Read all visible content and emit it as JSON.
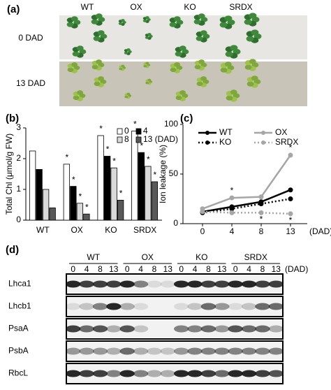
{
  "panel_a": {
    "label": "(a)",
    "columns": [
      "WT",
      "OX",
      "KO",
      "SRDX"
    ],
    "rows": [
      "0 DAD",
      "13 DAD"
    ]
  },
  "chart_data": [
    {
      "type": "bar",
      "panel": "(b)",
      "ylabel": "Total Chl (μmol/g FW)",
      "categories": [
        "WT",
        "OX",
        "KO",
        "SRDX"
      ],
      "ylim": [
        0,
        3
      ],
      "yticks": [
        0,
        1,
        2,
        3
      ],
      "series": [
        {
          "name": "0",
          "color": "#ffffff",
          "values": [
            2.25,
            1.82,
            2.75,
            2.9
          ],
          "significance": [
            null,
            "*",
            "*",
            "*"
          ]
        },
        {
          "name": "4",
          "color": "#000000",
          "values": [
            1.65,
            1.1,
            2.08,
            2.2
          ],
          "significance": [
            null,
            "*",
            "*",
            "*"
          ]
        },
        {
          "name": "8",
          "color": "#d9d9d9",
          "values": [
            1.0,
            0.55,
            1.7,
            1.75
          ],
          "significance": [
            null,
            "*",
            "*",
            "*"
          ]
        },
        {
          "name": "13 (DAD)",
          "color": "#595959",
          "values": [
            0.4,
            0.2,
            0.65,
            1.25
          ],
          "significance": [
            null,
            "*",
            "*",
            "*"
          ]
        }
      ]
    },
    {
      "type": "line",
      "panel": "(c)",
      "ylabel": "Ion leakage (%)",
      "xlabel": "(DAD)",
      "categories": [
        "0",
        "4",
        "8",
        "13"
      ],
      "ylim": [
        0,
        100
      ],
      "yticks": [
        0,
        50,
        100
      ],
      "series": [
        {
          "name": "WT",
          "color": "#000000",
          "style": "solid",
          "values": [
            12,
            17,
            22,
            34
          ],
          "significance": [
            null,
            null,
            null,
            null
          ]
        },
        {
          "name": "OX",
          "color": "#a6a6a6",
          "style": "solid",
          "values": [
            15,
            26,
            27,
            69
          ],
          "significance": [
            null,
            "*",
            null,
            "*"
          ]
        },
        {
          "name": "KO",
          "color": "#000000",
          "style": "dotted",
          "values": [
            11,
            15,
            20,
            25
          ],
          "significance": [
            null,
            null,
            null,
            "*"
          ]
        },
        {
          "name": "SRDX",
          "color": "#a6a6a6",
          "style": "dotted",
          "values": [
            12,
            11,
            11,
            10
          ],
          "significance": [
            null,
            null,
            "*",
            "*"
          ]
        }
      ]
    }
  ],
  "panel_d": {
    "label": "(d)",
    "groups": [
      "WT",
      "OX",
      "KO",
      "SRDX"
    ],
    "lanes": [
      "0",
      "4",
      "8",
      "13"
    ],
    "unit": "(DAD)",
    "proteins": [
      "Lhca1",
      "Lhcb1",
      "PsaA",
      "PsbA",
      "RbcL"
    ]
  }
}
